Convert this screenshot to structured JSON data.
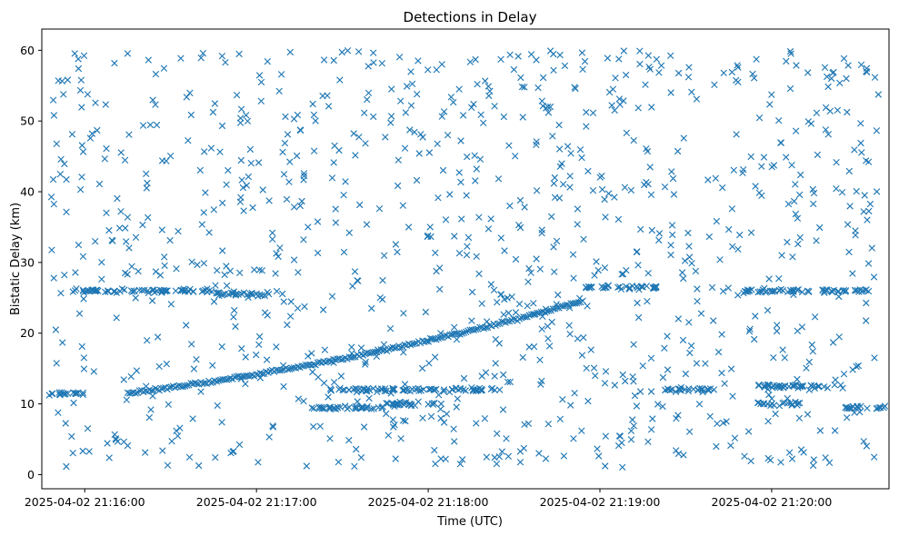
{
  "chart_data": {
    "type": "scatter",
    "title": "Detections in Delay",
    "xlabel": "Time (UTC)",
    "ylabel": "Bistatic Delay (km)",
    "x_start": "2025-04-02 21:15:45",
    "x_end": "2025-04-02 21:20:41",
    "x_ticks": [
      "2025-04-02 21:16:00",
      "2025-04-02 21:17:00",
      "2025-04-02 21:18:00",
      "2025-04-02 21:19:00",
      "2025-04-02 21:20:00"
    ],
    "ylim": [
      -2,
      63
    ],
    "y_ticks": [
      0,
      10,
      20,
      30,
      40,
      50,
      60
    ],
    "grid": false,
    "marker": "x",
    "color": "#1f77b4",
    "main_track": {
      "from": [
        "2025-04-02 21:16:15",
        11.5
      ],
      "to": [
        "2025-04-02 21:18:54",
        24.5
      ]
    },
    "clutter_bands": [
      {
        "from": "2025-04-02 21:15:55",
        "to": "2025-04-02 21:16:45",
        "delay": 26
      },
      {
        "from": "2025-04-02 21:16:45",
        "to": "2025-04-02 21:17:05",
        "delay": 25.5
      },
      {
        "from": "2025-04-02 21:18:55",
        "to": "2025-04-02 21:19:20",
        "delay": 26.5
      },
      {
        "from": "2025-04-02 21:19:50",
        "to": "2025-04-02 21:20:35",
        "delay": 26
      },
      {
        "from": "2025-04-02 21:17:25",
        "to": "2025-04-02 21:18:00",
        "delay": 12
      },
      {
        "from": "2025-04-02 21:18:00",
        "to": "2025-04-02 21:18:25",
        "delay": 12
      },
      {
        "from": "2025-04-02 21:19:20",
        "to": "2025-04-02 21:19:40",
        "delay": 12
      },
      {
        "from": "2025-04-02 21:19:55",
        "to": "2025-04-02 21:20:25",
        "delay": 12.5
      },
      {
        "from": "2025-04-02 21:15:45",
        "to": "2025-04-02 21:16:00",
        "delay": 11.5
      },
      {
        "from": "2025-04-02 21:17:20",
        "to": "2025-04-02 21:17:45",
        "delay": 9.5
      },
      {
        "from": "2025-04-02 21:17:45",
        "to": "2025-04-02 21:18:05",
        "delay": 10
      },
      {
        "from": "2025-04-02 21:19:55",
        "to": "2025-04-02 21:20:10",
        "delay": 10
      },
      {
        "from": "2025-04-02 21:20:25",
        "to": "2025-04-02 21:20:40",
        "delay": 9.5
      }
    ],
    "noise_points": 1000,
    "noise_range": [
      1,
      60
    ]
  }
}
